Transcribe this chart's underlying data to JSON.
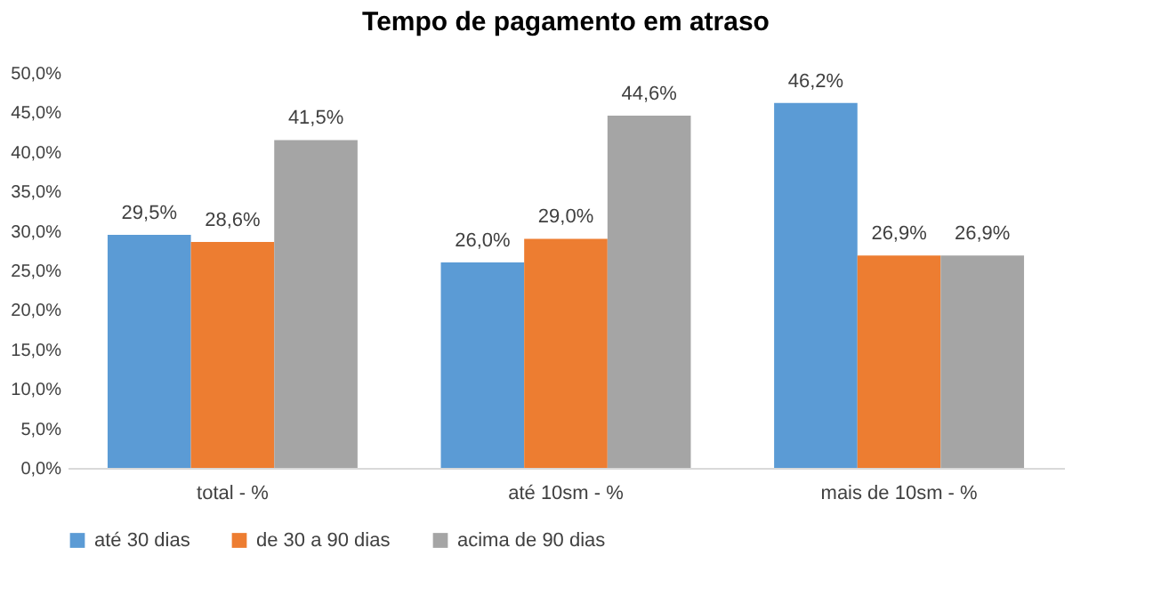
{
  "chart_data": {
    "type": "bar",
    "title": "Tempo de pagamento em atraso",
    "categories": [
      "total - %",
      "até 10sm - %",
      "mais de 10sm - %"
    ],
    "series": [
      {
        "name": "até 30 dias",
        "color": "#5b9bd5",
        "values": [
          29.5,
          26.0,
          46.2
        ],
        "value_labels": [
          "29,5%",
          "26,0%",
          "46,2%"
        ]
      },
      {
        "name": "de 30 a 90 dias",
        "color": "#ed7d31",
        "values": [
          28.6,
          29.0,
          26.9
        ],
        "value_labels": [
          "28,6%",
          "29,0%",
          "26,9%"
        ]
      },
      {
        "name": "acima de 90 dias",
        "color": "#a5a5a5",
        "values": [
          41.5,
          44.6,
          26.9
        ],
        "value_labels": [
          "41,5%",
          "44,6%",
          "26,9%"
        ]
      }
    ],
    "ylim": [
      0,
      50
    ],
    "yticks": [
      {
        "value": 0,
        "label": "0,0%"
      },
      {
        "value": 5,
        "label": "5,0%"
      },
      {
        "value": 10,
        "label": "10,0%"
      },
      {
        "value": 15,
        "label": "15,0%"
      },
      {
        "value": 20,
        "label": "20,0%"
      },
      {
        "value": 25,
        "label": "25,0%"
      },
      {
        "value": 30,
        "label": "30,0%"
      },
      {
        "value": 35,
        "label": "35,0%"
      },
      {
        "value": 40,
        "label": "40,0%"
      },
      {
        "value": 45,
        "label": "45,0%"
      },
      {
        "value": 50,
        "label": "50,0%"
      }
    ],
    "legend": "bottom"
  }
}
